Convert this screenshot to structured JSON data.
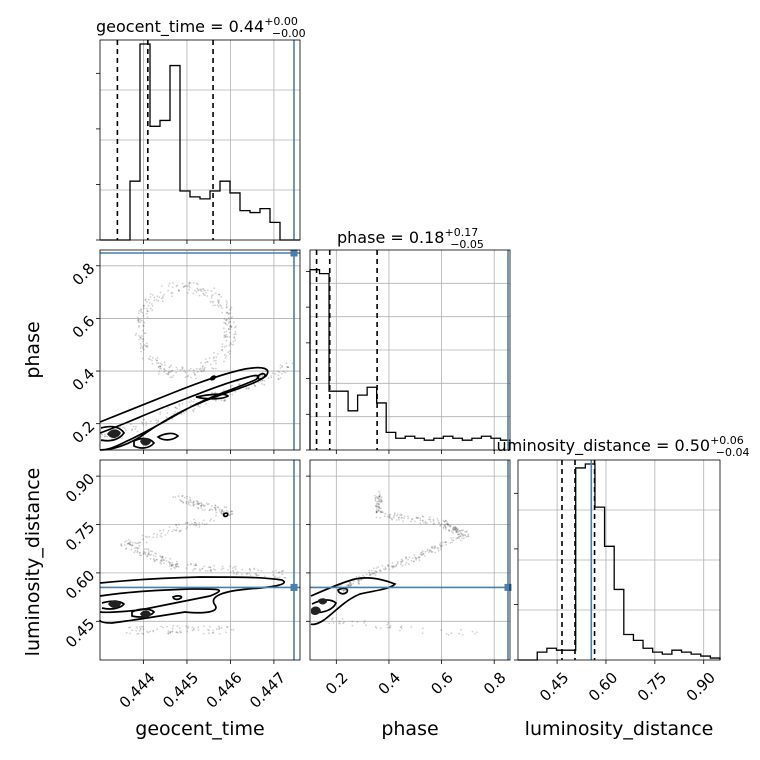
{
  "chart_data": {
    "type": "corner",
    "parameters": [
      "geocent_time",
      "phase",
      "luminosity_distance"
    ],
    "titles": [
      {
        "name": "geocent_time",
        "median": "0.44",
        "plus": "+0.00",
        "minus": "−0.00"
      },
      {
        "name": "phase",
        "median": "0.18",
        "plus": "+0.17",
        "minus": "−0.05"
      },
      {
        "name": "luminosity_distance",
        "median": "0.50",
        "plus": "+0.06",
        "minus": "−0.04"
      }
    ],
    "axis_labels": {
      "x": [
        "geocent_time",
        "phase",
        "luminosity_distance"
      ],
      "y": [
        "phase",
        "luminosity_distance"
      ]
    },
    "ranges": {
      "geocent_time": [
        0.443,
        0.4476
      ],
      "phase": [
        0.1,
        0.86
      ],
      "luminosity_distance": [
        0.33,
        0.95
      ]
    },
    "ticks": {
      "geocent_time": [
        "0.444",
        "0.445",
        "0.446",
        "0.447"
      ],
      "phase": [
        "0.2",
        "0.4",
        "0.6",
        "0.8"
      ],
      "luminosity_distance": [
        "0.45",
        "0.60",
        "0.75",
        "0.90"
      ]
    },
    "truths": {
      "geocent_time": 0.4476,
      "phase": 0.855,
      "luminosity_distance": 0.555
    },
    "quantiles": {
      "geocent_time": [
        0.4434,
        0.4441,
        0.4456
      ],
      "phase": [
        0.125,
        0.175,
        0.355
      ],
      "luminosity_distance": [
        0.465,
        0.505,
        0.565
      ]
    },
    "histograms": {
      "geocent_time": [
        0.0,
        0.0,
        0.0,
        0.3,
        1.0,
        0.58,
        0.61,
        0.89,
        0.25,
        0.22,
        0.21,
        0.25,
        0.3,
        0.24,
        0.15,
        0.14,
        0.16,
        0.09,
        0.0,
        0.0
      ],
      "phase": [
        0.92,
        0.9,
        0.3,
        0.3,
        0.2,
        0.28,
        0.32,
        0.24,
        0.09,
        0.06,
        0.07,
        0.06,
        0.05,
        0.06,
        0.07,
        0.06,
        0.05,
        0.06,
        0.07,
        0.06,
        0.05
      ],
      "luminosity_distance": [
        0.0,
        0.0,
        0.04,
        0.06,
        0.05,
        0.05,
        0.98,
        1.0,
        0.78,
        0.58,
        0.36,
        0.13,
        0.1,
        0.06,
        0.04,
        0.03,
        0.05,
        0.04,
        0.03,
        0.02,
        0.01
      ]
    },
    "joint_modes": {
      "phase_vs_geocent_time": [
        {
          "x": 0.4434,
          "y": 0.17
        },
        {
          "x": 0.4441,
          "y": 0.14
        }
      ],
      "luminosity_distance_vs_geocent_time": [
        {
          "x": 0.4434,
          "y": 0.51
        },
        {
          "x": 0.4441,
          "y": 0.48
        }
      ],
      "luminosity_distance_vs_phase": [
        {
          "x": 0.12,
          "y": 0.47
        },
        {
          "x": 0.18,
          "y": 0.51
        }
      ]
    },
    "grid": true
  }
}
